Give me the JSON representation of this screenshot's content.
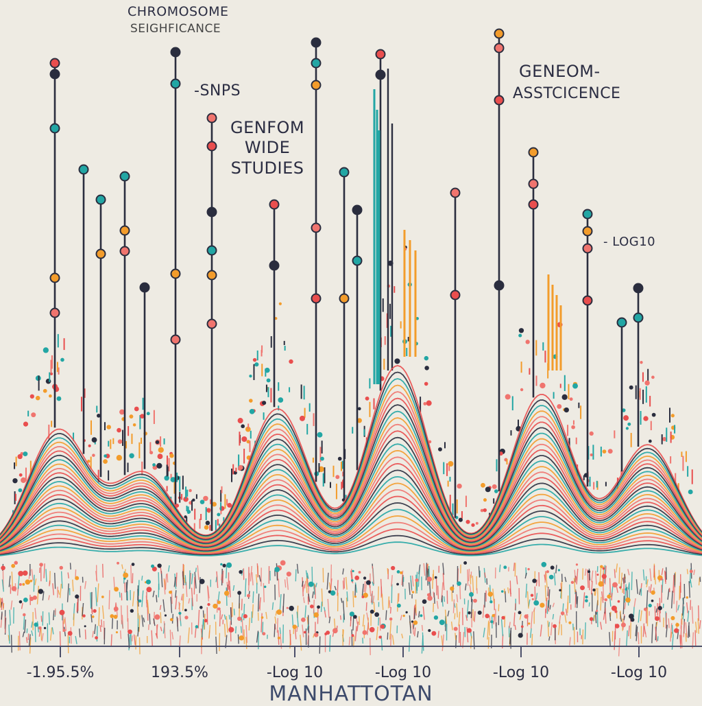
{
  "chart_data": {
    "type": "scatter",
    "title": "CHROMOSOME",
    "subtitle": "SEIGHFICANCE",
    "annotations": {
      "snps": "-SNPS",
      "gwas": [
        "GENFOM",
        "WIDE",
        "STUDIES"
      ],
      "right_title_1": "GENEOM-",
      "right_title_2": "ASSTCICENCE",
      "right_axis": "- LOG10"
    },
    "xlabel": "MANHATTOTAN",
    "ylabel": "",
    "x_tick_labels": [
      "-1.95.5%",
      "193.5%",
      "-Log 10",
      "-Log 10",
      "-Log 10",
      "-Log 10"
    ],
    "grid": false,
    "peaks": [
      {
        "center": 85,
        "height": 0.85
      },
      {
        "center": 210,
        "height": 0.55
      },
      {
        "center": 405,
        "height": 1.0
      },
      {
        "center": 580,
        "height": 1.3
      },
      {
        "center": 790,
        "height": 1.1
      },
      {
        "center": 945,
        "height": 0.75
      }
    ],
    "stems": [
      {
        "x": 80,
        "dots": [
          92,
          108,
          187,
          405,
          456
        ]
      },
      {
        "x": 122,
        "dots": [
          247
        ]
      },
      {
        "x": 147,
        "dots": [
          291,
          370
        ]
      },
      {
        "x": 182,
        "dots": [
          257,
          336,
          366
        ]
      },
      {
        "x": 211,
        "dots": [
          419
        ]
      },
      {
        "x": 256,
        "dots": [
          76,
          122,
          399,
          495
        ]
      },
      {
        "x": 309,
        "dots": [
          172,
          213,
          309,
          365,
          401,
          472
        ]
      },
      {
        "x": 400,
        "dots": [
          298,
          387
        ]
      },
      {
        "x": 461,
        "dots": [
          62,
          92,
          124,
          332,
          435
        ]
      },
      {
        "x": 502,
        "dots": [
          251,
          435
        ]
      },
      {
        "x": 521,
        "dots": [
          306,
          380
        ]
      },
      {
        "x": 555,
        "dots": [
          79,
          109
        ]
      },
      {
        "x": 664,
        "dots": [
          281,
          430
        ]
      },
      {
        "x": 728,
        "dots": [
          49,
          70,
          146,
          416
        ]
      },
      {
        "x": 778,
        "dots": [
          222,
          268,
          298
        ]
      },
      {
        "x": 857,
        "dots": [
          312,
          337,
          362,
          438
        ]
      },
      {
        "x": 907,
        "dots": [
          470
        ]
      },
      {
        "x": 931,
        "dots": [
          420,
          463
        ]
      }
    ],
    "colors": [
      "#e94e4e",
      "#2a2d3e",
      "#22a6a4",
      "#f39c2b",
      "#f0746e"
    ]
  }
}
